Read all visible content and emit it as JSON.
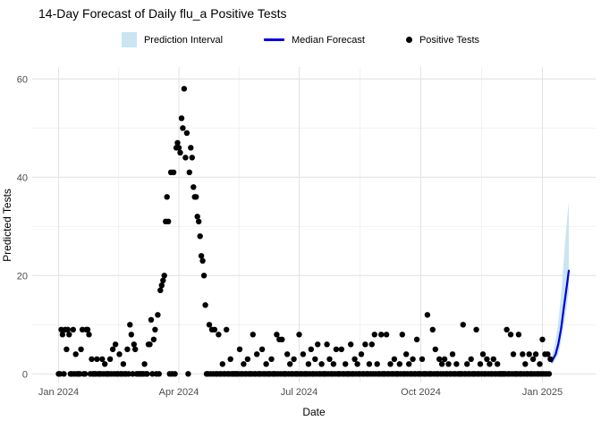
{
  "title": "14-Day Forecast of Daily flu_a Positive Tests",
  "legend": {
    "items": [
      {
        "label": "Prediction Interval",
        "swatch": "ribbon-swatch",
        "color": "#C9E5F2"
      },
      {
        "label": "Median Forecast",
        "swatch": "line-swatch",
        "color": "#0000E0"
      },
      {
        "label": "Positive Tests",
        "swatch": "point-swatch",
        "color": "#000000"
      }
    ]
  },
  "chart_data": {
    "type": "scatter",
    "title": "14-Day Forecast of Daily flu_a Positive Tests",
    "xlabel": "Date",
    "ylabel": "Predicted Tests",
    "ylim": [
      0,
      60
    ],
    "y_ticks": [
      0,
      20,
      40,
      60
    ],
    "y_minor_ticks": [
      10,
      30,
      50
    ],
    "x_tick_labels": [
      "Jan 2024",
      "Apr 2024",
      "Jul 2024",
      "Oct 2024",
      "Jan 2025"
    ],
    "x_tick_days": [
      0,
      91,
      182,
      274,
      366
    ],
    "x_minor_days": [
      45.5,
      136.5,
      228,
      320
    ],
    "grid": "major-and-minor",
    "legend_position": "top",
    "observed": {
      "name": "Positive Tests",
      "start_date": "2024-01-01",
      "frequency": "daily",
      "daily_values": [
        0,
        0,
        9,
        8,
        0,
        9,
        5,
        9,
        8,
        0,
        0,
        9,
        0,
        4,
        0,
        0,
        0,
        5,
        9,
        0,
        0,
        9,
        9,
        8,
        0,
        3,
        0,
        0,
        0,
        3,
        0,
        0,
        0,
        3,
        0,
        2,
        0,
        0,
        0,
        3,
        0,
        5,
        0,
        6,
        0,
        0,
        4,
        0,
        0,
        2,
        0,
        0,
        5,
        0,
        10,
        8,
        0,
        6,
        5,
        0,
        0,
        0,
        0,
        0,
        0,
        2,
        0,
        0,
        6,
        6,
        11,
        0,
        7,
        9,
        0,
        12,
        0,
        17,
        18,
        19,
        20,
        31,
        36,
        31,
        0,
        41,
        0,
        41,
        0,
        46,
        47,
        46,
        45,
        52,
        50,
        58,
        44,
        49,
        0,
        41,
        46,
        44,
        38,
        36,
        36,
        32,
        31,
        28,
        24,
        23,
        20,
        14,
        0,
        0,
        10,
        0,
        9,
        0,
        9,
        0,
        0,
        8,
        0,
        0,
        2,
        0,
        0,
        9,
        0,
        0,
        3,
        0,
        0,
        0,
        0,
        0,
        0,
        5,
        0,
        0,
        2,
        0,
        0,
        3,
        0,
        0,
        0,
        8,
        0,
        0,
        4,
        0,
        0,
        0,
        5,
        0,
        0,
        2,
        0,
        0,
        0,
        3,
        0,
        0,
        0,
        8,
        0,
        7,
        0,
        7,
        0,
        0,
        0,
        4,
        0,
        2,
        0,
        0,
        3,
        0,
        0,
        0,
        8,
        0,
        0,
        4,
        0,
        0,
        0,
        2,
        0,
        5,
        0,
        0,
        3,
        0,
        6,
        0,
        0,
        2,
        0,
        0,
        0,
        6,
        0,
        3,
        0,
        0,
        2,
        0,
        5,
        0,
        0,
        0,
        5,
        0,
        0,
        2,
        0,
        0,
        0,
        6,
        0,
        0,
        3,
        0,
        2,
        0,
        0,
        4,
        0,
        0,
        6,
        0,
        0,
        2,
        0,
        6,
        0,
        8,
        0,
        2,
        0,
        0,
        8,
        0,
        0,
        0,
        8,
        0,
        0,
        2,
        0,
        0,
        3,
        0,
        0,
        0,
        2,
        0,
        8,
        0,
        0,
        4,
        0,
        2,
        0,
        0,
        3,
        0,
        0,
        7,
        0,
        0,
        0,
        3,
        0,
        0,
        0,
        12,
        0,
        0,
        0,
        9,
        0,
        5,
        0,
        0,
        3,
        0,
        2,
        0,
        3,
        0,
        0,
        2,
        0,
        0,
        4,
        0,
        0,
        2,
        0,
        0,
        0,
        0,
        10,
        0,
        0,
        2,
        0,
        0,
        3,
        0,
        0,
        0,
        9,
        0,
        0,
        2,
        0,
        4,
        0,
        0,
        3,
        0,
        2,
        0,
        0,
        3,
        0,
        0,
        2,
        0,
        0,
        0,
        0,
        0,
        0,
        9,
        0,
        0,
        8,
        0,
        4,
        0,
        0,
        0,
        8,
        0,
        0,
        4,
        0,
        2,
        0,
        0,
        4,
        0,
        0,
        3,
        0,
        4,
        0,
        0,
        2,
        0,
        7,
        0,
        4,
        0,
        4,
        0,
        3
      ]
    },
    "forecast": {
      "name": "Median Forecast",
      "interval_name": "Prediction Interval",
      "start_date": "2025-01-08",
      "horizon_days": 14,
      "median": [
        2.5,
        3,
        3.5,
        4,
        5,
        6,
        7.5,
        9,
        11,
        13,
        15,
        17,
        19,
        21
      ],
      "lower": [
        2,
        2,
        2.5,
        3,
        3.5,
        4,
        5,
        6.5,
        8,
        9.5,
        11,
        13,
        15,
        17
      ],
      "upper": [
        3.5,
        4.5,
        5.5,
        7,
        8.5,
        10.5,
        13,
        16,
        19,
        22.5,
        26,
        29.5,
        32.5,
        35
      ]
    },
    "colors": {
      "ribbon": "#C9E5F2",
      "median_line": "#0000E0",
      "points": "#000000",
      "grid_major": "#E3E3E3",
      "grid_minor": "#F0F0F0",
      "tick_text": "#4d4d4d"
    }
  }
}
